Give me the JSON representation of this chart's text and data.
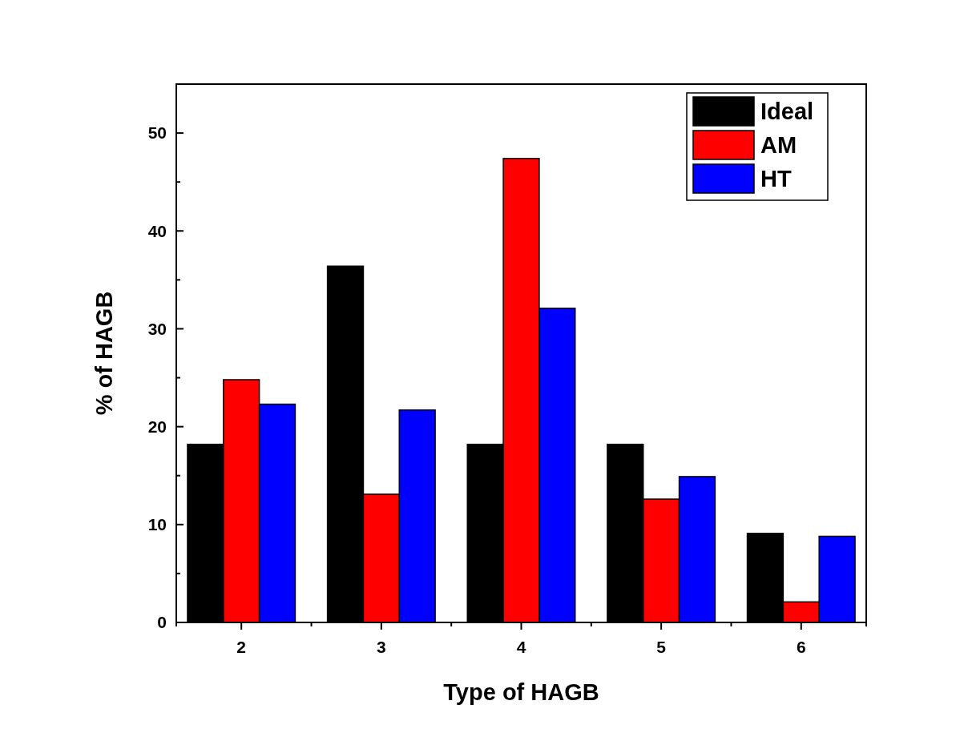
{
  "chart_data": {
    "type": "bar",
    "xlabel": "Type of HAGB",
    "ylabel": "% of HAGB",
    "categories": [
      "2",
      "3",
      "4",
      "5",
      "6"
    ],
    "series": [
      {
        "name": "Ideal",
        "color": "#000000",
        "values": [
          18.2,
          36.4,
          18.2,
          18.2,
          9.1
        ]
      },
      {
        "name": "AM",
        "color": "#ff0000",
        "values": [
          24.8,
          13.1,
          47.4,
          12.6,
          2.1
        ]
      },
      {
        "name": "HT",
        "color": "#0000ff",
        "values": [
          22.3,
          21.7,
          32.1,
          14.9,
          8.8
        ]
      }
    ],
    "ylim": [
      0,
      55
    ],
    "yticks": [
      0,
      {
        "value": 5,
        "label": null
      },
      10,
      {
        "value": 15,
        "label": null
      },
      20,
      {
        "value": 25,
        "label": null
      },
      30,
      {
        "value": 35,
        "label": null
      },
      40,
      {
        "value": 45,
        "label": null
      },
      50
    ],
    "legend": "top right",
    "grid": false
  }
}
